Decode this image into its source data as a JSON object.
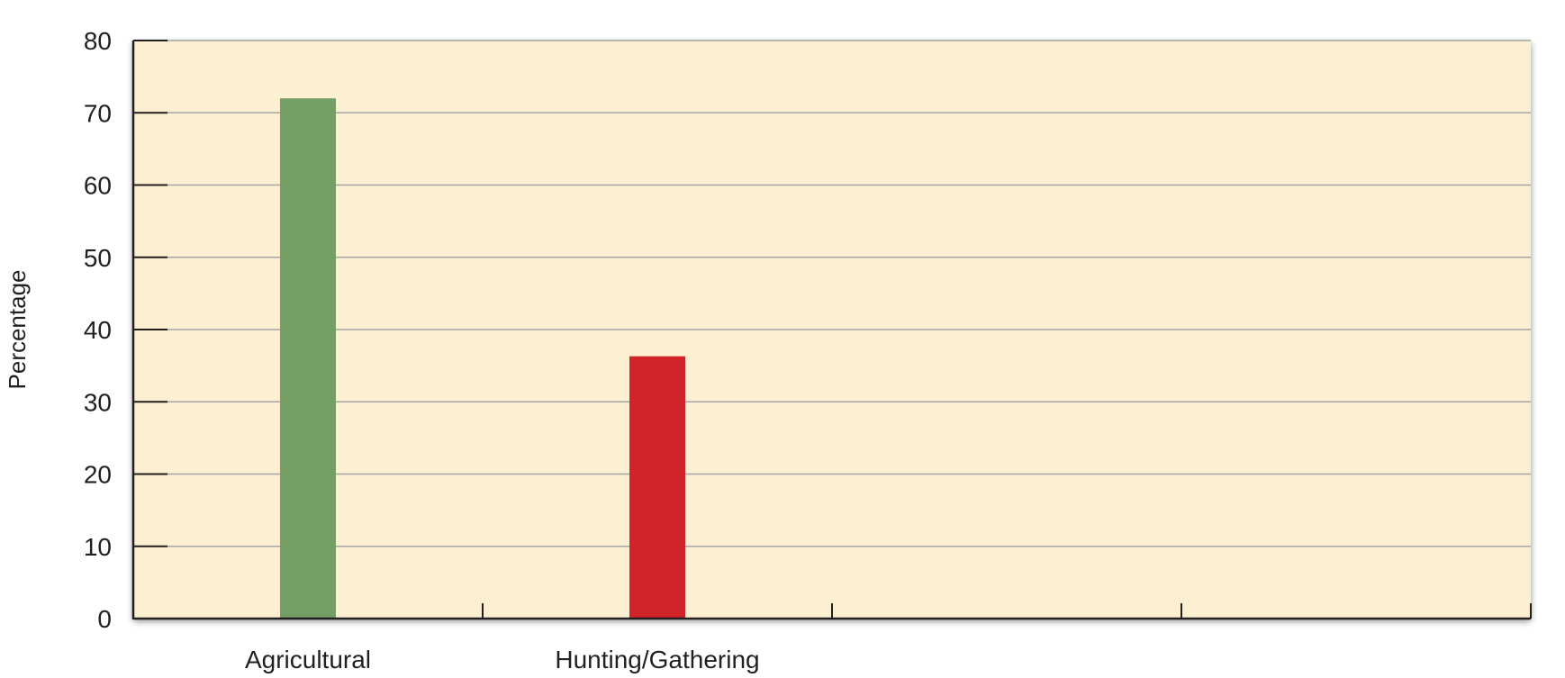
{
  "chart_data": {
    "type": "bar",
    "title": "",
    "xlabel": "",
    "ylabel": "Percentage",
    "categories": [
      "Agricultural",
      "Hunting/Gathering",
      "",
      ""
    ],
    "values": [
      72,
      36.3,
      null,
      null
    ],
    "bar_colors": [
      "#769f65",
      "#d0232a"
    ],
    "ylim": [
      0,
      80
    ],
    "yticks": [
      0,
      10,
      20,
      30,
      40,
      50,
      60,
      70,
      80
    ],
    "grid": true,
    "legend": "none",
    "plot_background": "#fdf0d2",
    "grid_color": "#a4a4a4"
  }
}
